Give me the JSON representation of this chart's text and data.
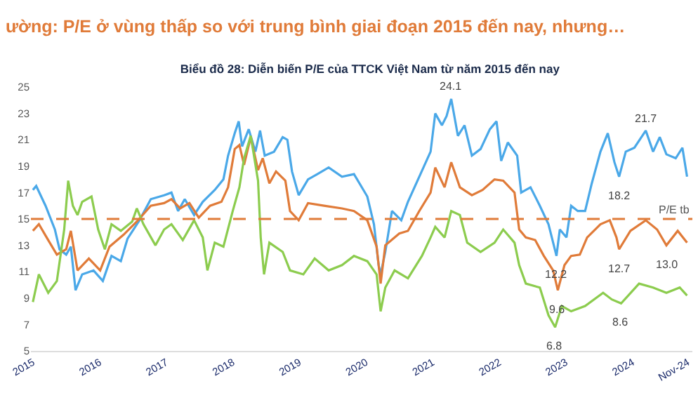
{
  "chart_data": {
    "type": "line",
    "title": "Biểu đồ 28: Diễn biến P/E của TTCK Việt Nam từ năm 2015 đến nay",
    "annotations": [
      "ường: P/E ở vùng thấp so với trung bình giai đoạn 2015 đến nay, nhưng…",
      {
        "text": "24.1",
        "x": 2021.28,
        "y": 24.1
      },
      {
        "text": "21.7",
        "x": 2024.2,
        "y": 21.7
      },
      {
        "text": "18.2",
        "x": 2023.8,
        "y": 18.2
      },
      {
        "text": "12.2",
        "x": 2022.86,
        "y": 12.2
      },
      {
        "text": "12.7",
        "x": 2023.8,
        "y": 12.7
      },
      {
        "text": "13.0",
        "x": 2024.51,
        "y": 13.0
      },
      {
        "text": "9.6",
        "x": 2022.88,
        "y": 9.6
      },
      {
        "text": "6.8",
        "x": 2022.84,
        "y": 6.8
      },
      {
        "text": "8.6",
        "x": 2023.83,
        "y": 8.6
      }
    ],
    "series": [
      {
        "color": "#4aa8e8",
        "x": [
          2015.0,
          2015.05,
          2015.19,
          2015.33,
          2015.4,
          2015.5,
          2015.57,
          2015.64,
          2015.74,
          2015.91,
          2016.05,
          2016.18,
          2016.32,
          2016.42,
          2016.6,
          2016.77,
          2016.97,
          2017.08,
          2017.18,
          2017.28,
          2017.42,
          2017.55,
          2017.73,
          2017.86,
          2017.93,
          2018.03,
          2018.09,
          2018.14,
          2018.24,
          2018.34,
          2018.41,
          2018.48,
          2018.62,
          2018.75,
          2018.82,
          2018.89,
          2018.99,
          2019.13,
          2019.27,
          2019.44,
          2019.64,
          2019.82,
          2020.02,
          2020.12,
          2020.19,
          2020.22,
          2020.29,
          2020.39,
          2020.53,
          2020.63,
          2020.8,
          2020.97,
          2021.04,
          2021.14,
          2021.21,
          2021.28,
          2021.38,
          2021.48,
          2021.59,
          2021.72,
          2021.86,
          2021.96,
          2022.03,
          2022.13,
          2022.27,
          2022.33,
          2022.47,
          2022.61,
          2022.74,
          2022.86,
          2022.91,
          2023.01,
          2023.08,
          2023.18,
          2023.29,
          2023.39,
          2023.52,
          2023.63,
          2023.73,
          2023.8,
          2023.9,
          2024.03,
          2024.2,
          2024.31,
          2024.41,
          2024.51,
          2024.65,
          2024.75,
          2024.82
        ],
        "values": [
          17.2,
          17.5,
          16.0,
          14.2,
          12.7,
          12.3,
          12.9,
          9.6,
          10.8,
          11.1,
          10.3,
          12.2,
          11.8,
          13.5,
          14.9,
          16.5,
          16.8,
          17.0,
          15.6,
          16.5,
          15.3,
          16.3,
          17.2,
          18.0,
          19.8,
          21.5,
          22.4,
          20.5,
          21.8,
          20.1,
          21.7,
          19.8,
          20.1,
          21.2,
          21.0,
          18.6,
          16.8,
          18.0,
          18.4,
          18.9,
          18.2,
          18.4,
          16.7,
          14.6,
          11.5,
          10.8,
          12.5,
          15.6,
          14.9,
          16.3,
          18.2,
          20.1,
          23.0,
          22.1,
          22.8,
          24.1,
          21.3,
          22.1,
          19.8,
          20.3,
          21.8,
          22.4,
          19.4,
          20.8,
          19.8,
          17.0,
          17.4,
          16.0,
          14.6,
          12.2,
          14.2,
          13.6,
          16.0,
          15.6,
          15.6,
          17.7,
          20.1,
          21.5,
          19.3,
          18.2,
          20.1,
          20.4,
          21.7,
          20.1,
          21.2,
          19.9,
          19.6,
          20.4,
          18.2
        ]
      },
      {
        "color": "#e07b39",
        "x": [
          2015.0,
          2015.09,
          2015.23,
          2015.36,
          2015.5,
          2015.57,
          2015.67,
          2015.84,
          2016.01,
          2016.15,
          2016.36,
          2016.56,
          2016.77,
          2016.97,
          2017.08,
          2017.21,
          2017.35,
          2017.49,
          2017.66,
          2017.83,
          2017.93,
          2018.03,
          2018.1,
          2018.17,
          2018.27,
          2018.38,
          2018.45,
          2018.55,
          2018.65,
          2018.79,
          2018.86,
          2018.99,
          2019.13,
          2019.37,
          2019.64,
          2019.82,
          2020.02,
          2020.16,
          2020.22,
          2020.29,
          2020.5,
          2020.63,
          2020.8,
          2020.97,
          2021.04,
          2021.18,
          2021.28,
          2021.41,
          2021.59,
          2021.75,
          2021.93,
          2022.06,
          2022.23,
          2022.3,
          2022.4,
          2022.54,
          2022.67,
          2022.81,
          2022.88,
          2022.98,
          2023.08,
          2023.21,
          2023.32,
          2023.52,
          2023.66,
          2023.76,
          2023.8,
          2023.97,
          2024.2,
          2024.37,
          2024.51,
          2024.68,
          2024.82
        ],
        "values": [
          14.1,
          14.6,
          13.4,
          12.3,
          12.7,
          14.1,
          11.1,
          12.0,
          11.1,
          12.9,
          13.8,
          14.8,
          16.0,
          16.2,
          16.5,
          15.8,
          16.2,
          15.1,
          16.0,
          16.3,
          17.4,
          20.3,
          20.6,
          19.1,
          21.2,
          18.7,
          19.6,
          17.7,
          18.6,
          17.9,
          15.6,
          14.9,
          16.2,
          16.0,
          15.8,
          15.6,
          14.9,
          12.9,
          10.1,
          13.0,
          13.9,
          14.1,
          15.6,
          17.0,
          18.9,
          17.4,
          19.3,
          17.4,
          16.8,
          17.2,
          18.0,
          17.9,
          17.0,
          14.2,
          13.6,
          13.4,
          12.2,
          11.1,
          9.6,
          11.5,
          12.2,
          12.3,
          13.6,
          14.6,
          14.9,
          13.6,
          12.7,
          14.1,
          14.9,
          14.2,
          13.0,
          14.1,
          13.2
        ]
      },
      {
        "color": "#8ccc4e",
        "x": [
          2015.0,
          2015.09,
          2015.23,
          2015.36,
          2015.47,
          2015.53,
          2015.6,
          2015.67,
          2015.74,
          2015.88,
          2015.98,
          2016.08,
          2016.18,
          2016.32,
          2016.49,
          2016.56,
          2016.66,
          2016.84,
          2016.97,
          2017.08,
          2017.25,
          2017.42,
          2017.55,
          2017.62,
          2017.73,
          2017.86,
          2018.0,
          2018.1,
          2018.17,
          2018.27,
          2018.38,
          2018.42,
          2018.47,
          2018.55,
          2018.75,
          2018.86,
          2019.06,
          2019.23,
          2019.44,
          2019.64,
          2019.82,
          2020.02,
          2020.16,
          2020.22,
          2020.29,
          2020.43,
          2020.63,
          2020.84,
          2020.97,
          2021.04,
          2021.18,
          2021.28,
          2021.41,
          2021.52,
          2021.72,
          2021.93,
          2022.06,
          2022.23,
          2022.3,
          2022.4,
          2022.61,
          2022.74,
          2022.84,
          2022.94,
          2023.08,
          2023.29,
          2023.56,
          2023.69,
          2023.83,
          2024.1,
          2024.31,
          2024.51,
          2024.71,
          2024.82
        ],
        "values": [
          8.7,
          10.8,
          9.4,
          10.3,
          14.2,
          17.9,
          16.0,
          15.3,
          16.3,
          16.7,
          14.2,
          12.7,
          14.6,
          14.1,
          14.8,
          15.8,
          14.6,
          13.0,
          14.2,
          14.6,
          13.4,
          14.9,
          13.6,
          11.1,
          13.2,
          12.9,
          15.6,
          17.4,
          19.6,
          21.3,
          17.9,
          13.6,
          10.8,
          13.2,
          12.5,
          11.1,
          10.8,
          12.0,
          11.1,
          11.5,
          12.2,
          11.8,
          10.8,
          8.0,
          9.8,
          11.1,
          10.5,
          12.2,
          13.6,
          14.4,
          13.6,
          15.6,
          15.3,
          13.2,
          12.5,
          13.2,
          14.2,
          13.2,
          11.5,
          10.1,
          9.8,
          7.7,
          6.8,
          8.4,
          8.0,
          8.4,
          9.4,
          8.9,
          8.6,
          10.1,
          9.8,
          9.4,
          9.8,
          9.2
        ]
      }
    ],
    "xlim": [
      2014.97,
      2024.9
    ],
    "xticks": [
      2015,
      2016,
      2017,
      2018,
      2019,
      2020,
      2021,
      2022,
      2023,
      2024,
      {
        "value": 2024.83,
        "label": "Nov-24"
      }
    ],
    "ylim": [
      5,
      25
    ],
    "yticks": [
      5,
      7,
      9,
      11,
      13,
      15,
      17,
      19,
      21,
      23,
      25
    ],
    "ref_lines": [
      {
        "axis": "y",
        "value": 15,
        "label": "P/E tb",
        "color": "#e07b39",
        "line_style": "dashed"
      }
    ],
    "marker": "none",
    "line_style": "solid"
  }
}
